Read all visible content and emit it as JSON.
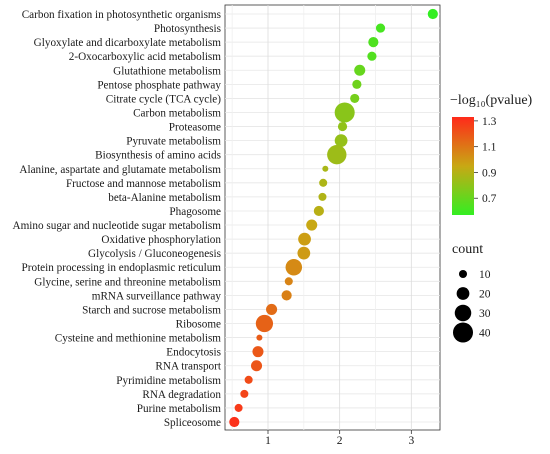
{
  "chart_data": {
    "type": "scatter",
    "categories": [
      "Carbon fixation in photosynthetic organisms",
      "Photosynthesis",
      "Glyoxylate and dicarboxylate metabolism",
      "2-Oxocarboxylic acid metabolism",
      "Glutathione metabolism",
      "Pentose phosphate pathway",
      "Citrate cycle (TCA cycle)",
      "Carbon metabolism",
      "Proteasome",
      "Pyruvate metabolism",
      "Biosynthesis of amino acids",
      "Alanine, aspartate and glutamate metabolism",
      "Fructose and mannose metabolism",
      "beta-Alanine metabolism",
      "Phagosome",
      "Amino sugar and nucleotide sugar metabolism",
      "Oxidative phosphorylation",
      "Glycolysis / Gluconeogenesis",
      "Protein processing in endoplasmic reticulum",
      "Glycine, serine and threonine metabolism",
      "mRNA surveillance pathway",
      "Starch and sucrose metabolism",
      "Ribosome",
      "Cysteine and methionine metabolism",
      "Endocytosis",
      "RNA transport",
      "Pyrimidine metabolism",
      "RNA degradation",
      "Purine metabolism",
      "Spliceosome"
    ],
    "x": [
      3.3,
      2.57,
      2.47,
      2.45,
      2.28,
      2.24,
      2.21,
      2.07,
      2.04,
      2.02,
      1.96,
      1.8,
      1.77,
      1.76,
      1.71,
      1.61,
      1.51,
      1.5,
      1.36,
      1.29,
      1.26,
      1.05,
      0.95,
      0.88,
      0.86,
      0.84,
      0.73,
      0.67,
      0.59,
      0.53
    ],
    "neg_log10_pvalue": [
      0.57,
      0.62,
      0.64,
      0.65,
      0.7,
      0.72,
      0.74,
      0.79,
      0.81,
      0.82,
      0.84,
      0.87,
      0.88,
      0.89,
      0.91,
      0.95,
      0.98,
      0.99,
      1.04,
      1.06,
      1.07,
      1.13,
      1.16,
      1.18,
      1.19,
      1.2,
      1.23,
      1.25,
      1.28,
      1.31
    ],
    "count": [
      14,
      12,
      14,
      12,
      16,
      12,
      12,
      40,
      12,
      20,
      38,
      8,
      10,
      10,
      14,
      16,
      20,
      20,
      30,
      10,
      14,
      16,
      32,
      8,
      16,
      16,
      10,
      10,
      10,
      14
    ],
    "xlim": [
      0.4,
      3.4
    ],
    "xticks": [
      "1",
      "2",
      "3"
    ],
    "grid": true,
    "color_legend": {
      "title": "−log₁₀(pvalue)",
      "ticks": [
        "1.3",
        "1.1",
        "0.9",
        "0.7"
      ],
      "low_color": "#33ee22",
      "mid_color": "#c8a814",
      "high_color": "#ff2a1a",
      "range": [
        0.57,
        1.33
      ],
      "placement": "right"
    },
    "size_legend": {
      "title": "count",
      "values": [
        10,
        20,
        30,
        40
      ],
      "labels": [
        "10",
        "20",
        "30",
        "40"
      ],
      "placement": "right"
    }
  }
}
